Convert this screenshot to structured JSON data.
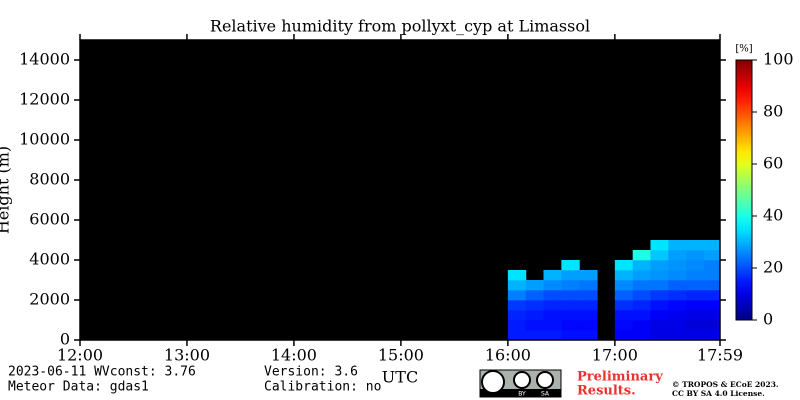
{
  "chart_data": {
    "type": "heatmap",
    "title": "Relative humidity from pollyxt_cyp at Limassol",
    "y_label": "Height (m)",
    "x_label": "UTC",
    "colorbar_label": "[%]",
    "colormap": "jet",
    "background": "#000000",
    "xlim": [
      12,
      17.983
    ],
    "xticks": [
      {
        "value": 12,
        "label": "12:00"
      },
      {
        "value": 13,
        "label": "13:00"
      },
      {
        "value": 14,
        "label": "14:00"
      },
      {
        "value": 15,
        "label": "15:00"
      },
      {
        "value": 16,
        "label": "16:00"
      },
      {
        "value": 17,
        "label": "17:00"
      },
      {
        "value": 17.983,
        "label": "17:59"
      }
    ],
    "ylim": [
      0,
      15000
    ],
    "yticks": [
      0,
      2000,
      4000,
      6000,
      8000,
      10000,
      12000,
      14000
    ],
    "clim": [
      0,
      100
    ],
    "cticks": [
      0,
      20,
      40,
      60,
      80,
      100
    ],
    "x": [
      16,
      16.167,
      16.333,
      16.5,
      16.667,
      16.833,
      17,
      17.167,
      17.333,
      17.5,
      17.667,
      17.833
    ],
    "x_step": 0.167,
    "y": [
      0,
      500,
      1000,
      1500,
      2000,
      2500,
      3000,
      3500,
      4000,
      4500
    ],
    "y_step": 500,
    "z": [
      [
        15,
        15,
        15,
        14,
        14,
        null,
        12,
        12,
        10,
        10,
        10,
        10
      ],
      [
        15,
        14,
        14,
        13,
        13,
        null,
        13,
        12,
        10,
        10,
        9,
        9
      ],
      [
        16,
        15,
        14,
        14,
        14,
        null,
        14,
        14,
        12,
        11,
        10,
        10
      ],
      [
        18,
        17,
        16,
        16,
        16,
        null,
        17,
        16,
        14,
        13,
        12,
        12
      ],
      [
        25,
        22,
        20,
        20,
        20,
        null,
        22,
        20,
        18,
        17,
        16,
        16
      ],
      [
        30,
        28,
        26,
        25,
        24,
        null,
        26,
        24,
        24,
        22,
        22,
        22
      ],
      [
        35,
        null,
        30,
        28,
        28,
        null,
        30,
        28,
        27,
        26,
        25,
        25
      ],
      [
        null,
        null,
        null,
        35,
        null,
        null,
        35,
        30,
        28,
        27,
        26,
        25
      ],
      [
        null,
        null,
        null,
        null,
        null,
        null,
        null,
        40,
        32,
        28,
        27,
        28
      ],
      [
        null,
        null,
        null,
        null,
        null,
        null,
        null,
        null,
        35,
        30,
        30,
        30
      ]
    ]
  },
  "footer": {
    "date_line": "2023-06-11    WVconst:   3.76",
    "meteor": "Meteor Data: gdas1",
    "version": "Version: 3.6",
    "calibration": "Calibration: no",
    "badge_by": "BY",
    "badge_sa": "SA",
    "preliminary_1": "Preliminary",
    "preliminary_2": "Results.",
    "copyright": "© TROPOS & ECoE 2023.",
    "license": "CC BY SA 4.0 License."
  }
}
